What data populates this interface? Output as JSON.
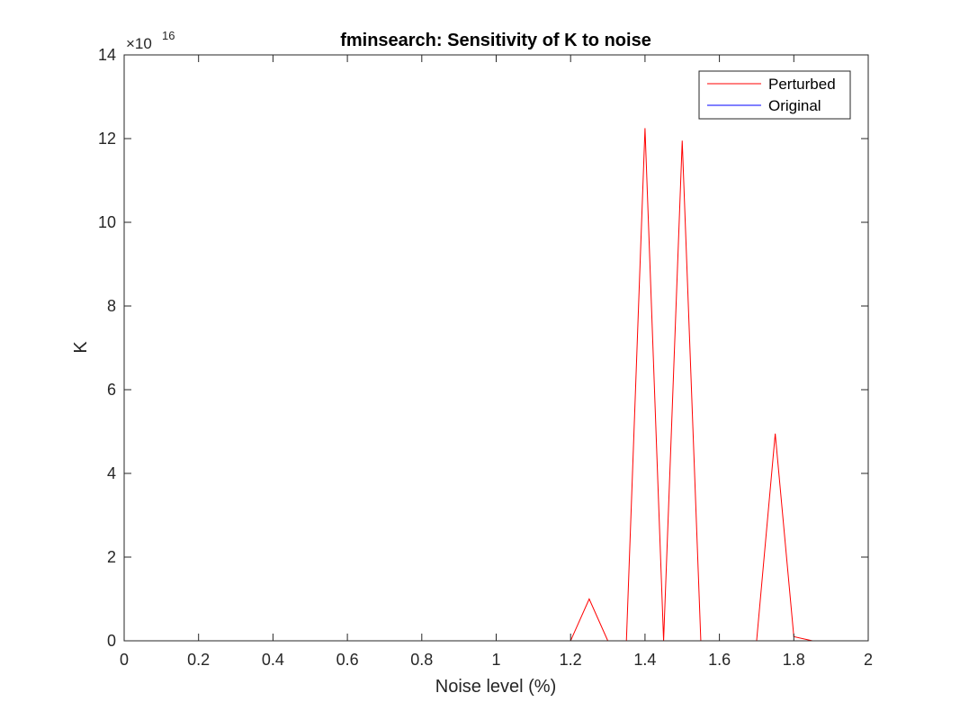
{
  "chart_data": {
    "type": "line",
    "title": "fminsearch: Sensitivity of K to noise",
    "xlabel": "Noise level (%)",
    "ylabel": "K",
    "xlim": [
      0,
      2
    ],
    "ylim": [
      0,
      14
    ],
    "y_exponent_label": "×10",
    "y_exponent_power": "16",
    "x_ticks": [
      0,
      0.2,
      0.4,
      0.6,
      0.8,
      1,
      1.2,
      1.4,
      1.6,
      1.8,
      2
    ],
    "x_tick_labels": [
      "0",
      "0.2",
      "0.4",
      "0.6",
      "0.8",
      "1",
      "1.2",
      "1.4",
      "1.6",
      "1.8",
      "2"
    ],
    "y_ticks": [
      0,
      2,
      4,
      6,
      8,
      10,
      12,
      14
    ],
    "y_tick_labels": [
      "0",
      "2",
      "4",
      "6",
      "8",
      "10",
      "12",
      "14"
    ],
    "grid": false,
    "legend_position": "top-right",
    "series": [
      {
        "name": "Perturbed",
        "color": "#ff0000",
        "x": [
          0,
          0.05,
          0.1,
          0.15,
          0.2,
          0.25,
          0.3,
          0.35,
          0.4,
          0.45,
          0.5,
          0.55,
          0.6,
          0.65,
          0.7,
          0.75,
          0.8,
          0.85,
          0.9,
          0.95,
          1,
          1.05,
          1.1,
          1.15,
          1.2,
          1.25,
          1.3,
          1.35,
          1.4,
          1.45,
          1.5,
          1.55,
          1.6,
          1.65,
          1.7,
          1.75,
          1.8,
          1.85,
          1.9,
          1.95,
          2
        ],
        "y": [
          0,
          0,
          0,
          0,
          0,
          0,
          0,
          0,
          0,
          0,
          0,
          0,
          0,
          0,
          0,
          0,
          0,
          0,
          0,
          0,
          0,
          0,
          0,
          0,
          0,
          1.0,
          0,
          0,
          12.25,
          0,
          11.95,
          0,
          0,
          0,
          0,
          4.95,
          0.1,
          0,
          0,
          0,
          0
        ]
      },
      {
        "name": "Original",
        "color": "#0000ff",
        "x": [
          0,
          2
        ],
        "y": [
          0,
          0
        ]
      }
    ]
  }
}
